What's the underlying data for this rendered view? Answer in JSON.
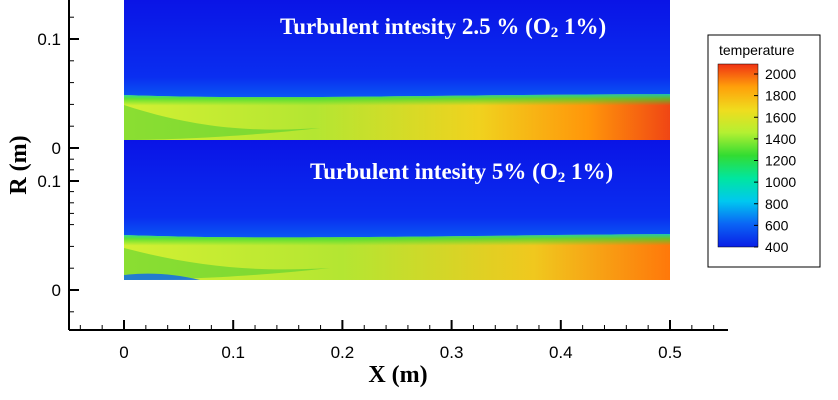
{
  "chart_data": {
    "type": "heatmap",
    "xlabel": "X (m)",
    "ylabel": "R (m)",
    "xlim": [
      0,
      0.5
    ],
    "x_ticks": [
      "0",
      "0.1",
      "0.2",
      "0.3",
      "0.4",
      "0.5"
    ],
    "colormap": {
      "title": "temperature",
      "range": [
        400,
        2000
      ],
      "ticks": [
        "2000",
        "1800",
        "1600",
        "1400",
        "1200",
        "1000",
        "800",
        "600",
        "400"
      ],
      "colors": [
        "#0a1ee6",
        "#0a64f5",
        "#00c8f0",
        "#00e6a0",
        "#32dc32",
        "#b4f032",
        "#f0dc1e",
        "#ffa00a",
        "#f03214"
      ]
    },
    "panels": [
      {
        "title_main": "Turbulent intesity 2.5 %  (O",
        "title_sub": "2",
        "title_tail": " 1%)",
        "y_ticks": [
          "0.1",
          "0"
        ],
        "y_tick_values": [
          0.1,
          0.0
        ],
        "jet_start_temp": 1550,
        "jet_end_temp": 1950
      },
      {
        "title_main": "Turbulent intesity 5% (O",
        "title_sub": "2",
        "title_tail": " 1%)",
        "y_ticks": [
          "0.1",
          "0"
        ],
        "y_tick_values": [
          0.1,
          0.0
        ],
        "jet_start_temp": 1550,
        "jet_end_temp": 1850
      }
    ]
  }
}
